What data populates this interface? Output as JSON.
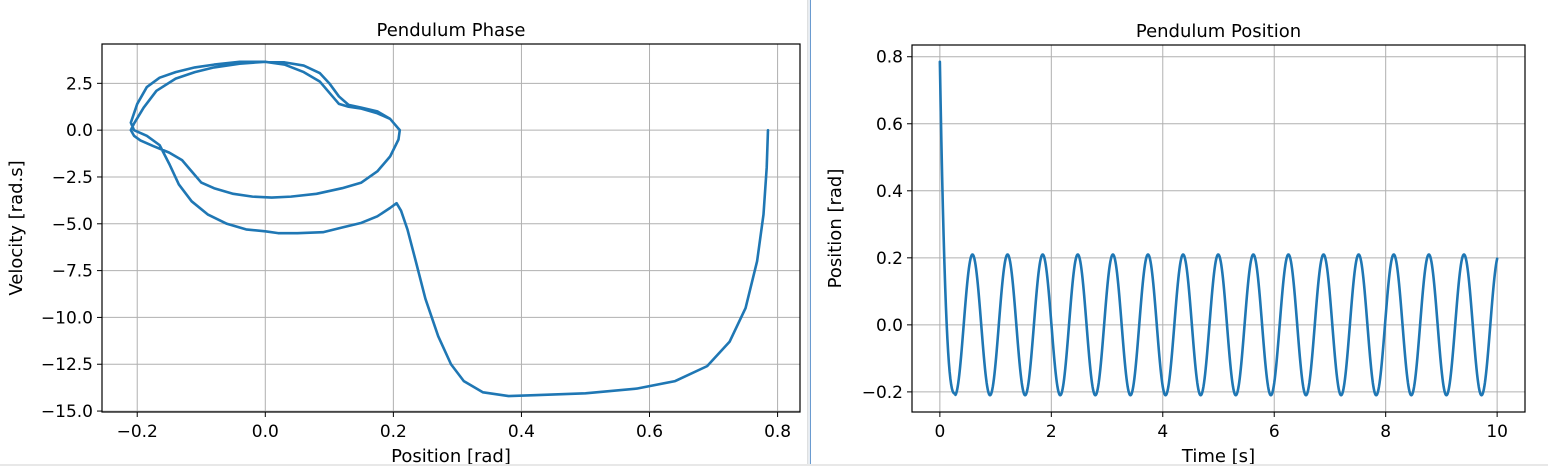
{
  "chart_data": [
    {
      "type": "line",
      "title": "Pendulum Phase",
      "xlabel": "Position [rad]",
      "ylabel": "Velocity [rad.s]",
      "xlim": [
        -0.255,
        0.835
      ],
      "ylim": [
        -15.05,
        4.6
      ],
      "xticks": [
        -0.2,
        0.0,
        0.2,
        0.4,
        0.6,
        0.8
      ],
      "xtick_labels": [
        "−0.2",
        "0.0",
        "0.2",
        "0.4",
        "0.6",
        "0.8"
      ],
      "yticks": [
        2.5,
        0.0,
        -2.5,
        -5.0,
        -7.5,
        -10.0,
        -12.5,
        -15.0
      ],
      "ytick_labels": [
        "2.5",
        "0.0",
        "−2.5",
        "−5.0",
        "−7.5",
        "−10.0",
        "−12.5",
        "−15.0"
      ],
      "grid": true,
      "color": "#1f77b4",
      "series": [
        {
          "x": [
            0.785,
            0.783,
            0.778,
            0.768,
            0.75,
            0.725,
            0.69,
            0.64,
            0.58,
            0.5,
            0.42,
            0.38,
            0.34,
            0.31,
            0.29,
            0.27,
            0.25,
            0.235,
            0.222,
            0.212,
            0.205,
            0.195,
            0.175,
            0.15,
            0.12,
            0.09,
            0.05,
            0.02,
            0.0,
            -0.03,
            -0.06,
            -0.09,
            -0.115,
            -0.135,
            -0.15,
            -0.165,
            -0.185,
            -0.205,
            -0.21,
            -0.2,
            -0.185,
            -0.165,
            -0.14,
            -0.11,
            -0.08,
            -0.04,
            0.0,
            0.03,
            0.06,
            0.085,
            0.1,
            0.115,
            0.13,
            0.15,
            0.175,
            0.195,
            0.21,
            0.208,
            0.195,
            0.175,
            0.15,
            0.12,
            0.08,
            0.04,
            0.01,
            -0.02,
            -0.05,
            -0.08,
            -0.1,
            -0.115,
            -0.13,
            -0.15,
            -0.175,
            -0.195,
            -0.205,
            -0.21,
            -0.205,
            -0.19,
            -0.17,
            -0.14,
            -0.11,
            -0.08,
            -0.04,
            0.0,
            0.03,
            0.06,
            0.085,
            0.1,
            0.115,
            0.13,
            0.15,
            0.175,
            0.195,
            0.21
          ],
          "y": [
            0.0,
            -2.0,
            -4.5,
            -7.0,
            -9.5,
            -11.3,
            -12.6,
            -13.4,
            -13.8,
            -14.05,
            -14.15,
            -14.2,
            -14.0,
            -13.4,
            -12.5,
            -11.0,
            -9.0,
            -7.0,
            -5.3,
            -4.3,
            -3.9,
            -4.15,
            -4.6,
            -4.95,
            -5.2,
            -5.45,
            -5.5,
            -5.5,
            -5.4,
            -5.3,
            -5.0,
            -4.5,
            -3.8,
            -2.9,
            -1.8,
            -0.8,
            -0.3,
            0.0,
            0.4,
            1.4,
            2.3,
            2.8,
            3.1,
            3.35,
            3.5,
            3.65,
            3.65,
            3.5,
            3.1,
            2.6,
            2.0,
            1.4,
            1.25,
            1.15,
            0.9,
            0.6,
            0.0,
            -0.5,
            -1.4,
            -2.2,
            -2.8,
            -3.1,
            -3.4,
            -3.55,
            -3.6,
            -3.55,
            -3.4,
            -3.1,
            -2.8,
            -2.2,
            -1.6,
            -1.2,
            -0.85,
            -0.55,
            -0.3,
            0.0,
            0.35,
            1.2,
            2.1,
            2.75,
            3.1,
            3.35,
            3.55,
            3.65,
            3.62,
            3.45,
            3.05,
            2.5,
            1.8,
            1.35,
            1.2,
            1.0,
            0.6,
            0.0
          ]
        }
      ]
    },
    {
      "type": "line",
      "title": "Pendulum Position",
      "xlabel": "Time [s]",
      "ylabel": "Position [rad]",
      "xlim": [
        -0.5,
        10.5
      ],
      "ylim": [
        -0.26,
        0.835
      ],
      "xticks": [
        0,
        2,
        4,
        6,
        8,
        10
      ],
      "xtick_labels": [
        "0",
        "2",
        "4",
        "6",
        "8",
        "10"
      ],
      "yticks": [
        0.8,
        0.6,
        0.4,
        0.2,
        0.0,
        -0.2
      ],
      "ytick_labels": [
        "0.8",
        "0.6",
        "0.4",
        "0.2",
        "0.0",
        "−0.2"
      ],
      "grid": true,
      "color": "#1f77b4",
      "series": [
        {
          "t_start": 0.0,
          "t_end": 10.0,
          "initial_position": 0.785,
          "amplitude": 0.21,
          "period": 0.63,
          "first_minimum_time": 0.27,
          "minimum": -0.205
        }
      ]
    }
  ]
}
